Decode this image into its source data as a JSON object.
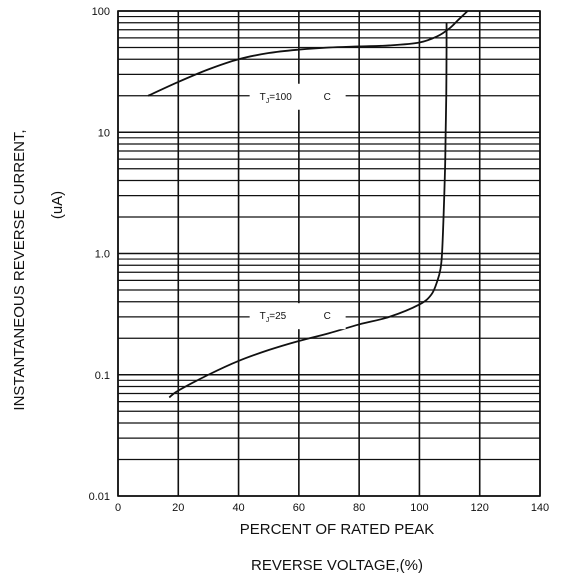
{
  "chart_data": {
    "type": "line",
    "title": "",
    "xlabel_line1": "PERCENT OF RATED PEAK",
    "xlabel_line2": "REVERSE VOLTAGE,(%)",
    "ylabel_line1": "INSTANTANEOUS REVERSE CURRENT,",
    "ylabel_line2": "(uA)",
    "x_scale": "linear",
    "y_scale": "log",
    "xlim": [
      0,
      140
    ],
    "ylim": [
      0.01,
      100
    ],
    "grid": true,
    "x_ticks": [
      0,
      20,
      40,
      60,
      80,
      100,
      120,
      140
    ],
    "x_tick_labels": [
      "0",
      "20",
      "40",
      "60",
      "80",
      "100",
      "120",
      "140"
    ],
    "y_ticks": [
      0.01,
      0.1,
      1.0,
      10,
      100
    ],
    "y_tick_labels": [
      "0.01",
      "0.1",
      "1.0",
      "10",
      "100"
    ],
    "series": [
      {
        "name": "TJ=100 C",
        "label_main": "T",
        "label_sub": "J",
        "label_rest": "=100",
        "label_unit": "C",
        "label_at": [
          45,
          20
        ],
        "color": "#111111",
        "points": [
          [
            10,
            20
          ],
          [
            20,
            26
          ],
          [
            30,
            33
          ],
          [
            40,
            40
          ],
          [
            50,
            45
          ],
          [
            60,
            48
          ],
          [
            70,
            50
          ],
          [
            80,
            51
          ],
          [
            90,
            52
          ],
          [
            100,
            55
          ],
          [
            106,
            62
          ],
          [
            110,
            72
          ],
          [
            113,
            85
          ],
          [
            116,
            100
          ]
        ]
      },
      {
        "name": "TJ=25 C",
        "label_main": "T",
        "label_sub": "J",
        "label_rest": "=25",
        "label_unit": "C",
        "label_at": [
          45,
          0.31
        ],
        "color": "#111111",
        "points": [
          [
            17,
            0.065
          ],
          [
            20,
            0.074
          ],
          [
            30,
            0.1
          ],
          [
            40,
            0.13
          ],
          [
            50,
            0.16
          ],
          [
            60,
            0.19
          ],
          [
            70,
            0.22
          ],
          [
            80,
            0.26
          ],
          [
            90,
            0.3
          ],
          [
            100,
            0.38
          ],
          [
            104,
            0.46
          ],
          [
            106,
            0.6
          ],
          [
            107,
            0.75
          ],
          [
            107.5,
            1.0
          ],
          [
            108,
            2.0
          ],
          [
            108.5,
            5.0
          ],
          [
            108.7,
            10
          ],
          [
            108.9,
            20
          ],
          [
            109,
            50
          ],
          [
            109,
            80
          ]
        ]
      }
    ]
  }
}
